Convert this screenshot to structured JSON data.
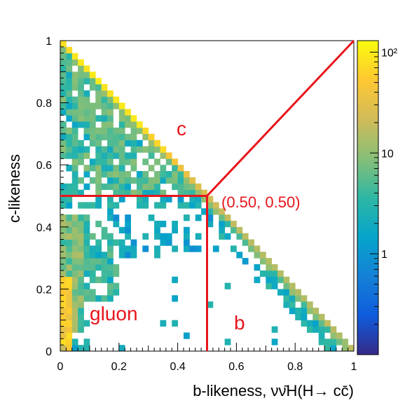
{
  "chart_data": {
    "type": "heatmap",
    "xlabel": "b-likeness, νν̄H(H→ cc̄)",
    "ylabel": "c-likeness",
    "xlim": [
      0,
      1
    ],
    "ylim": [
      0,
      1
    ],
    "x_ticks": [
      "0",
      "0.2",
      "0.4",
      "0.6",
      "0.8",
      "1"
    ],
    "y_ticks": [
      "0",
      "0.2",
      "0.4",
      "0.6",
      "0.8",
      "1"
    ],
    "z_scale": "log",
    "z_range": [
      0.1,
      130
    ],
    "colorbar_ticks": [
      {
        "value": 1,
        "label": "1"
      },
      {
        "value": 10,
        "label": "10"
      },
      {
        "value": 100,
        "label": "10²"
      }
    ],
    "bins_per_axis": 50,
    "cuts": {
      "b": 0.5,
      "c": 0.5
    },
    "cut_label": "(0.50, 0.50)",
    "region_labels": {
      "c": "c",
      "b": "b",
      "gluon": "gluon"
    },
    "boundary_line": {
      "from": [
        0.5,
        0.5
      ],
      "to": [
        1,
        1
      ]
    },
    "palette": [
      "#352a87",
      "#0f5cdd",
      "#1481d6",
      "#06a4ca",
      "#2eb7a4",
      "#87bf77",
      "#d1bb59",
      "#fec832",
      "#f9fb0e"
    ],
    "line_color": "#e8151c"
  }
}
